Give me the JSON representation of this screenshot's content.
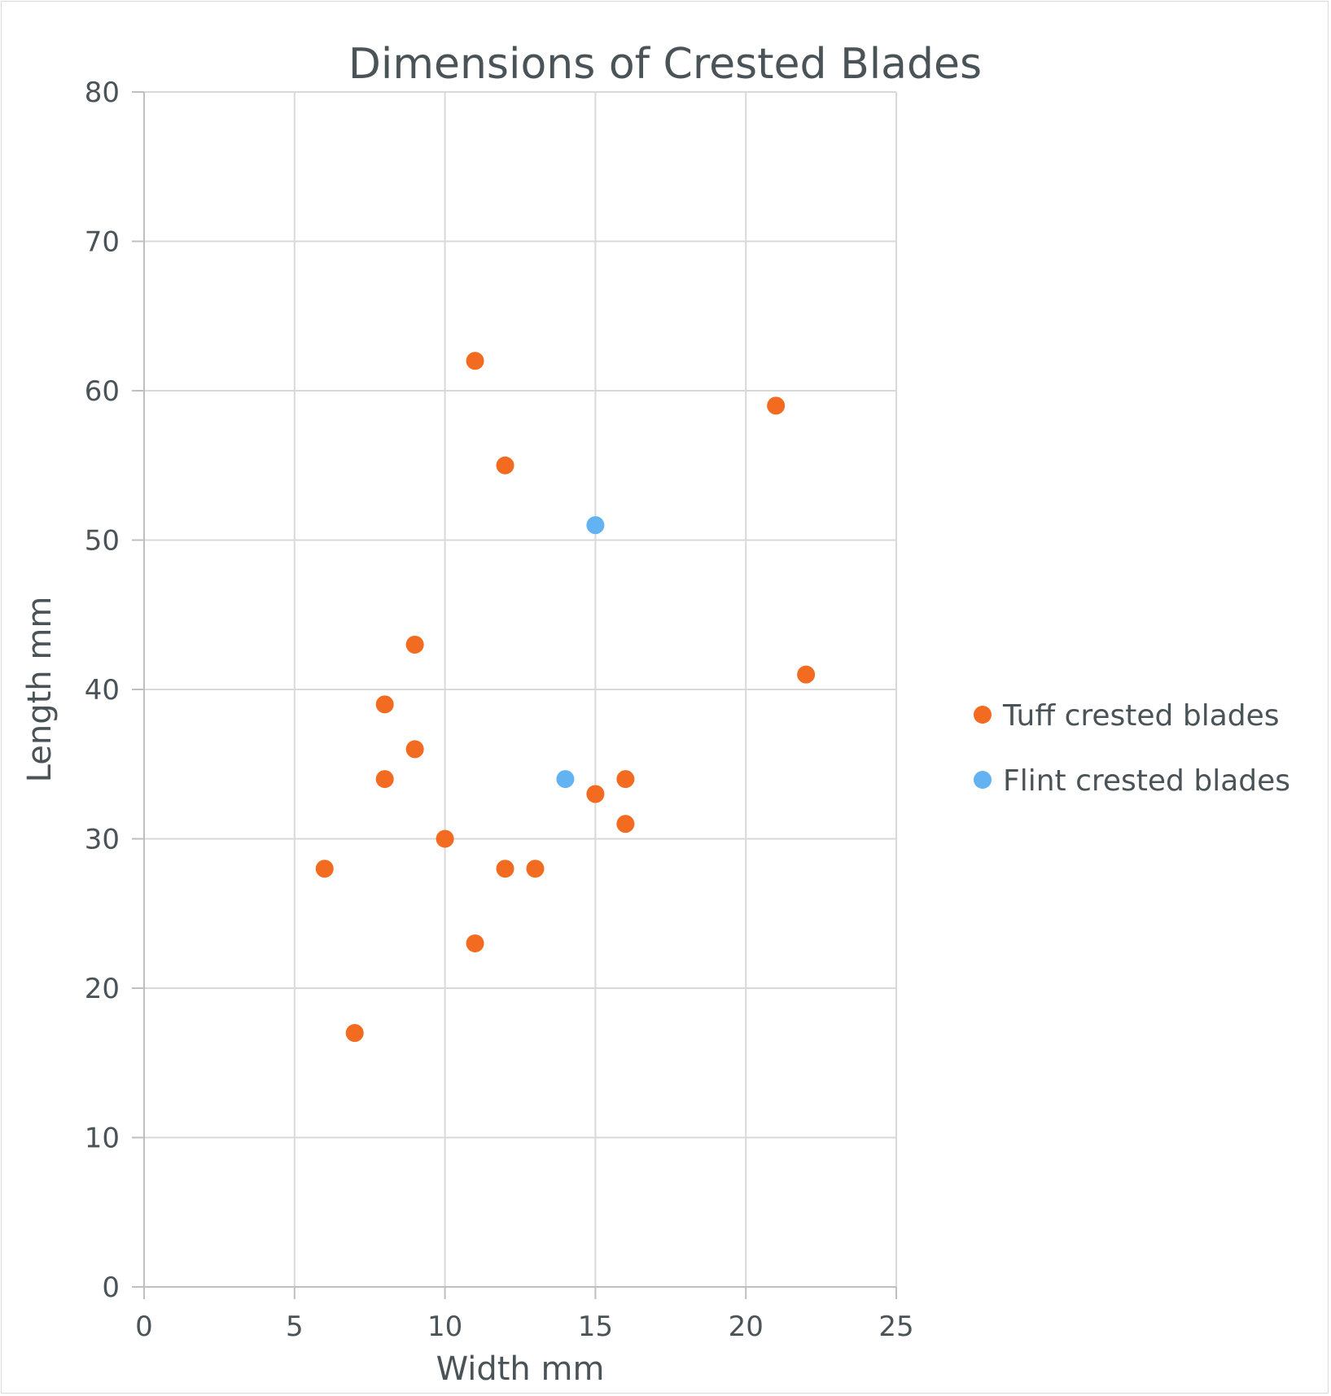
{
  "chart_data": {
    "type": "scatter",
    "title": "Dimensions of Crested Blades",
    "xlabel": "Width mm",
    "ylabel": "Length mm",
    "xlim": [
      0,
      25
    ],
    "ylim": [
      0,
      80
    ],
    "x_ticks": [
      0,
      5,
      10,
      15,
      20,
      25
    ],
    "y_ticks": [
      0,
      10,
      20,
      30,
      40,
      50,
      60,
      70,
      80
    ],
    "x_tick_labels": [
      "0",
      "5",
      "10",
      "15",
      "20",
      "25"
    ],
    "y_tick_labels": [
      "0",
      "10",
      "20",
      "30",
      "40",
      "50",
      "60",
      "70",
      "80"
    ],
    "grid": true,
    "legend_position": "right",
    "series": [
      {
        "name": "Tuff crested blades",
        "color": "#f26b21",
        "points": [
          {
            "x": 11,
            "y": 62
          },
          {
            "x": 21,
            "y": 59
          },
          {
            "x": 12,
            "y": 55
          },
          {
            "x": 9,
            "y": 43
          },
          {
            "x": 22,
            "y": 41
          },
          {
            "x": 8,
            "y": 39
          },
          {
            "x": 9,
            "y": 36
          },
          {
            "x": 8,
            "y": 34
          },
          {
            "x": 16,
            "y": 34
          },
          {
            "x": 15,
            "y": 33
          },
          {
            "x": 16,
            "y": 31
          },
          {
            "x": 10,
            "y": 30
          },
          {
            "x": 6,
            "y": 28
          },
          {
            "x": 12,
            "y": 28
          },
          {
            "x": 13,
            "y": 28
          },
          {
            "x": 11,
            "y": 23
          },
          {
            "x": 7,
            "y": 17
          }
        ]
      },
      {
        "name": "Flint crested blades",
        "color": "#63b3f2",
        "points": [
          {
            "x": 15,
            "y": 51
          },
          {
            "x": 14,
            "y": 34
          }
        ]
      }
    ]
  }
}
